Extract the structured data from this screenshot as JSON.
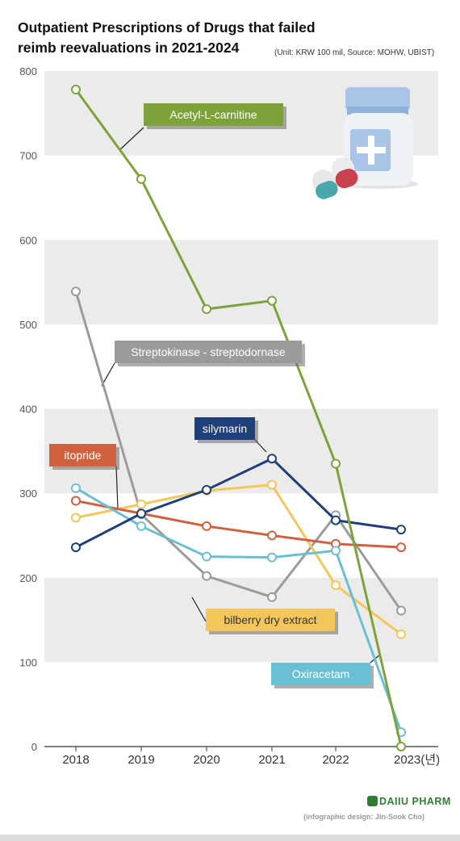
{
  "header": {
    "title_line1": "Outpatient Prescriptions of Drugs that failed",
    "title_line2": "reimb reevaluations  in 2021-2024",
    "unit_note": "(Unit: KRW 100 mil, Source: MOHW, UBIST)"
  },
  "footer": {
    "brand": "DAIIU PHARM",
    "credit": "(infographic design: Jin-Sook Cho)"
  },
  "colors": {
    "band": "#ebebeb",
    "axis": "#555555",
    "tick_text": "#333333"
  },
  "chart_data": {
    "type": "line",
    "x": [
      "2018",
      "2019",
      "2020",
      "2021",
      "2022",
      "2023(년)"
    ],
    "ylim": [
      0,
      800
    ],
    "yticks": [
      0,
      100,
      200,
      300,
      400,
      500,
      600,
      700,
      800
    ],
    "grid": "alternating horizontal bands",
    "series": [
      {
        "name": "Acetyl-L-carnitine",
        "color": "#7ea23a",
        "values": [
          null,
          778,
          518,
          528,
          335,
          0
        ],
        "start_index": 0
      },
      {
        "name": "Streptokinase - streptodornase",
        "color": "#9b9b9b",
        "values": [
          539,
          275,
          202,
          177,
          274,
          161
        ]
      },
      {
        "name": "silymarin",
        "color": "#1f3f7a",
        "values": [
          236,
          276,
          304,
          341,
          268,
          257
        ]
      },
      {
        "name": "itopride",
        "color": "#d0603f",
        "values": [
          291,
          null,
          261,
          250,
          240,
          236
        ]
      },
      {
        "name": "bilberry dry extract",
        "color": "#f2c65a",
        "values": [
          271,
          287,
          303,
          310,
          191,
          133
        ]
      },
      {
        "name": "Oxiracetam",
        "color": "#6bbfd3",
        "values": [
          306,
          261,
          225,
          224,
          232,
          17
        ]
      }
    ]
  }
}
